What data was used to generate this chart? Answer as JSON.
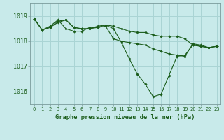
{
  "title": "Graphe pression niveau de la mer (hPa)",
  "bg_color": "#c8eaea",
  "grid_color": "#aad4d4",
  "line_color": "#1a5c1a",
  "marker_color": "#1a5c1a",
  "ylim": [
    1015.5,
    1019.5
  ],
  "xlim": [
    -0.5,
    23.5
  ],
  "yticks": [
    1016,
    1017,
    1018,
    1019
  ],
  "xtick_labels": [
    "0",
    "1",
    "2",
    "3",
    "4",
    "5",
    "6",
    "7",
    "8",
    "9",
    "10",
    "11",
    "12",
    "13",
    "14",
    "15",
    "16",
    "17",
    "18",
    "19",
    "20",
    "21",
    "22",
    "23"
  ],
  "series": [
    [
      1018.9,
      1018.45,
      1018.55,
      1018.75,
      1018.85,
      1018.55,
      1018.5,
      1018.5,
      1018.6,
      1018.65,
      1018.6,
      1018.5,
      1018.4,
      1018.35,
      1018.35,
      1018.25,
      1018.2,
      1018.2,
      1018.2,
      1018.1,
      1017.85,
      1017.8,
      1017.75,
      1017.8
    ],
    [
      1018.9,
      1018.45,
      1018.55,
      1018.8,
      1018.85,
      1018.55,
      1018.5,
      1018.5,
      1018.55,
      1018.6,
      1018.1,
      1018.0,
      1017.95,
      1017.9,
      1017.85,
      1017.7,
      1017.6,
      1017.5,
      1017.45,
      1017.4,
      1017.9,
      1017.85,
      1017.75,
      1017.8
    ],
    [
      1018.9,
      1018.45,
      1018.6,
      1018.85,
      1018.5,
      1018.4,
      1018.4,
      1018.55,
      1018.55,
      1018.65,
      1018.5,
      1017.95,
      1017.3,
      1016.7,
      1016.3,
      1015.8,
      1015.9,
      1016.65,
      1017.4,
      1017.45,
      1017.85,
      1017.8,
      1017.75,
      1017.8
    ]
  ]
}
